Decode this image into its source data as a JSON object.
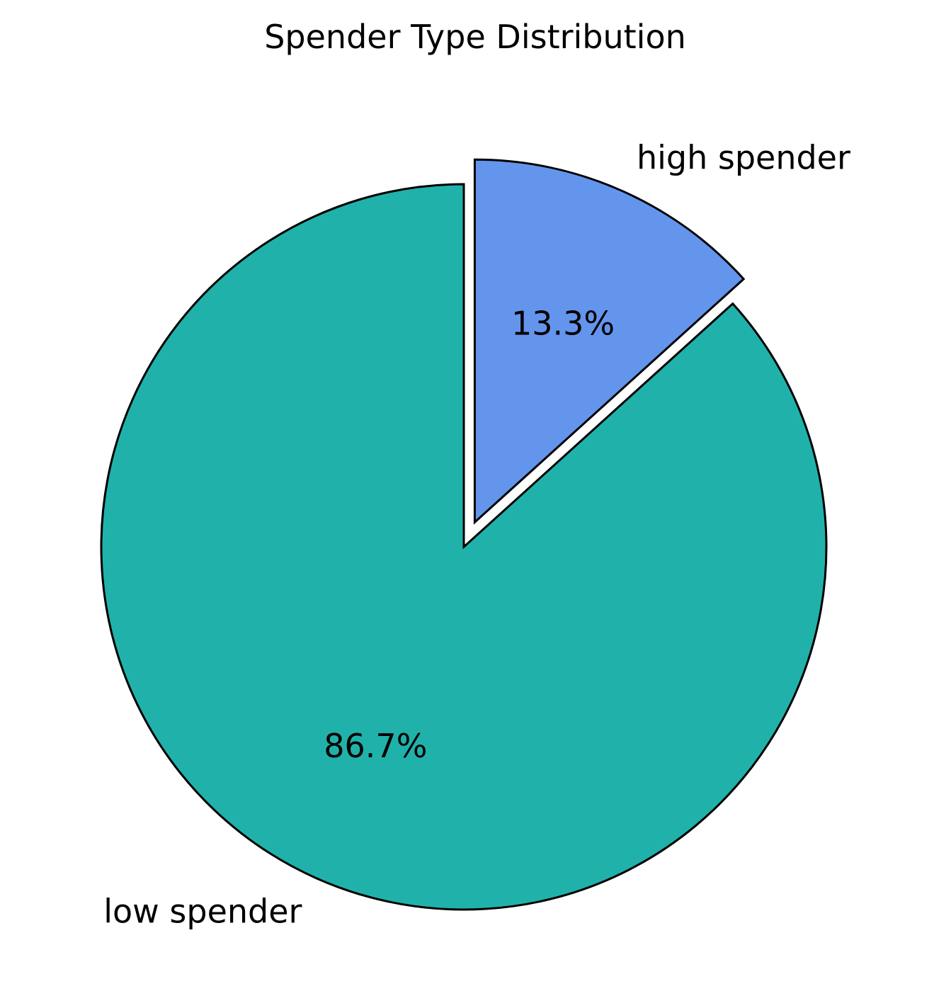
{
  "chart_data": {
    "type": "pie",
    "title": "Spender Type Distribution",
    "slices": [
      {
        "label": "high spender",
        "value": 13.3,
        "pct_label": "13.3%",
        "color": "#6495ED",
        "exploded": true
      },
      {
        "label": "low spender",
        "value": 86.7,
        "pct_label": "86.7%",
        "color": "#20B2AA",
        "exploded": false
      }
    ],
    "start_angle": "top (90°)",
    "direction": "clockwise",
    "edge_color": "#000000"
  }
}
